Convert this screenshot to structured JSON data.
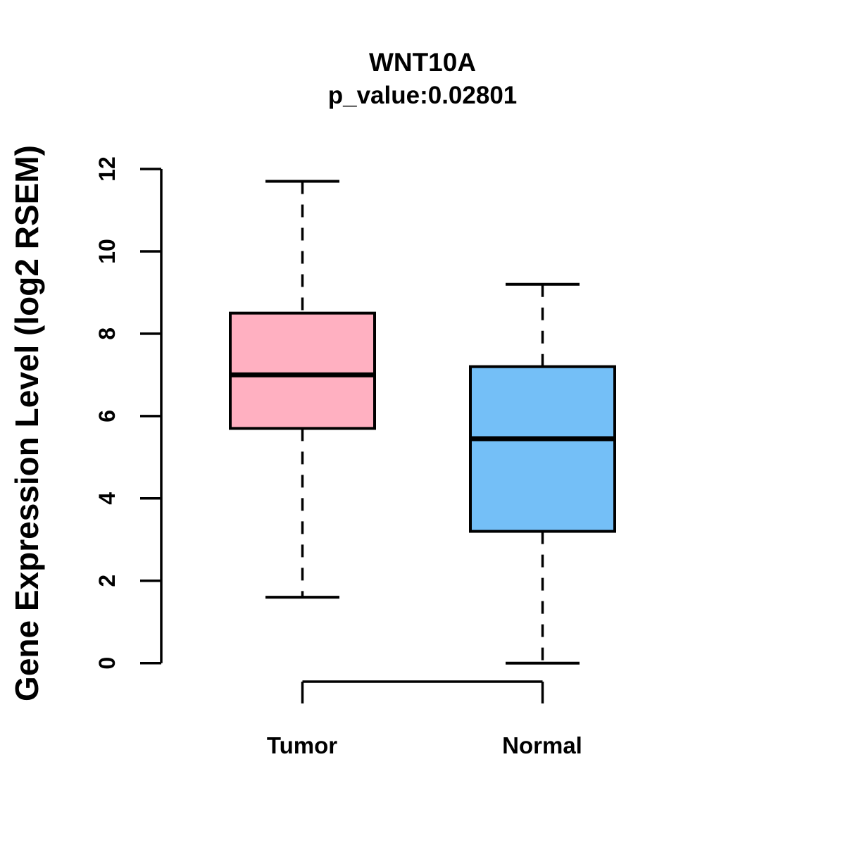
{
  "chart_data": {
    "type": "boxplot",
    "title": "WNT10A",
    "subtitle": "p_value:0.02801",
    "p_value": 0.02801,
    "ylabel": "Gene Expression Level (log2 RSEM)",
    "xlabel": "",
    "ylim": [
      0,
      12
    ],
    "yticks": [
      0,
      2,
      4,
      6,
      8,
      10,
      12
    ],
    "grid": false,
    "legend": "none",
    "whisker_style": "dashed",
    "axis_color": "#000000",
    "box_border_color": "#000000",
    "median_color": "#000000",
    "categories": [
      "Tumor",
      "Normal"
    ],
    "series": [
      {
        "name": "Tumor",
        "fill_color": "#FFB0C1",
        "lower_whisker": 1.6,
        "q1": 5.7,
        "median": 7.0,
        "q3": 8.5,
        "upper_whisker": 11.7
      },
      {
        "name": "Normal",
        "fill_color": "#74BFF7",
        "lower_whisker": 0.0,
        "q1": 3.2,
        "median": 5.45,
        "q3": 7.2,
        "upper_whisker": 9.2
      }
    ]
  }
}
